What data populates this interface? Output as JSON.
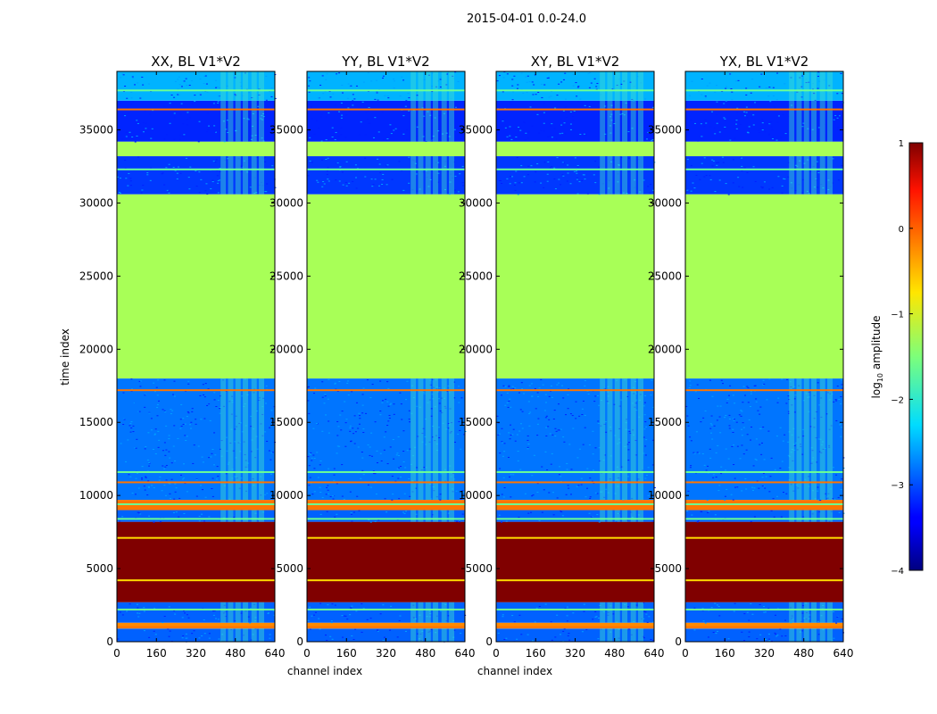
{
  "suptitle": "2015-04-01 0.0-24.0",
  "chart_data": [
    {
      "type": "heatmap",
      "title": "XX, BL V1*V2",
      "xlabel": "channel index",
      "ylabel": "time index",
      "xlim": [
        0,
        640
      ],
      "ylim": [
        0,
        39000
      ],
      "xticks": [
        0,
        160,
        320,
        480,
        640
      ],
      "yticks": [
        0,
        5000,
        10000,
        15000,
        20000,
        25000,
        30000,
        35000
      ],
      "band_ranges": [
        {
          "t0": 0,
          "t1": 900,
          "value": -2.9
        },
        {
          "t0": 900,
          "t1": 1300,
          "value": -0.3
        },
        {
          "t0": 1300,
          "t1": 2700,
          "value": -2.9
        },
        {
          "t0": 2700,
          "t1": 8200,
          "value": 1.0
        },
        {
          "t0": 8200,
          "t1": 9000,
          "value": -2.9
        },
        {
          "t0": 9000,
          "t1": 9700,
          "value": -0.2
        },
        {
          "t0": 9700,
          "t1": 18000,
          "value": -2.8
        },
        {
          "t0": 18000,
          "t1": 30600,
          "value": -1.3
        },
        {
          "t0": 30600,
          "t1": 33200,
          "value": -3.1
        },
        {
          "t0": 33200,
          "t1": 34200,
          "value": -1.3
        },
        {
          "t0": 34200,
          "t1": 37000,
          "value": -3.2
        },
        {
          "t0": 37000,
          "t1": 39000,
          "value": -2.5
        }
      ]
    },
    {
      "type": "heatmap",
      "title": "YY, BL V1*V2",
      "xlabel": "channel index",
      "ylabel": "",
      "xlim": [
        0,
        640
      ],
      "ylim": [
        0,
        39000
      ],
      "xticks": [
        0,
        160,
        320,
        480,
        640
      ],
      "yticks": [
        0,
        5000,
        10000,
        15000,
        20000,
        25000,
        30000,
        35000
      ],
      "band_ranges": [
        {
          "t0": 0,
          "t1": 900,
          "value": -2.9
        },
        {
          "t0": 900,
          "t1": 1300,
          "value": -0.3
        },
        {
          "t0": 1300,
          "t1": 2700,
          "value": -2.9
        },
        {
          "t0": 2700,
          "t1": 8200,
          "value": 1.0
        },
        {
          "t0": 8200,
          "t1": 9000,
          "value": -2.9
        },
        {
          "t0": 9000,
          "t1": 9700,
          "value": -0.2
        },
        {
          "t0": 9700,
          "t1": 18000,
          "value": -2.8
        },
        {
          "t0": 18000,
          "t1": 30600,
          "value": -1.3
        },
        {
          "t0": 30600,
          "t1": 33200,
          "value": -3.1
        },
        {
          "t0": 33200,
          "t1": 34200,
          "value": -1.3
        },
        {
          "t0": 34200,
          "t1": 37000,
          "value": -3.2
        },
        {
          "t0": 37000,
          "t1": 39000,
          "value": -2.5
        }
      ]
    },
    {
      "type": "heatmap",
      "title": "XY, BL V1*V2",
      "xlabel": "",
      "ylabel": "",
      "xlim": [
        0,
        640
      ],
      "ylim": [
        0,
        39000
      ],
      "xticks": [
        0,
        160,
        320,
        480,
        640
      ],
      "yticks": [
        0,
        5000,
        10000,
        15000,
        20000,
        25000,
        30000,
        35000
      ],
      "band_ranges": [
        {
          "t0": 0,
          "t1": 900,
          "value": -2.9
        },
        {
          "t0": 900,
          "t1": 1300,
          "value": -0.3
        },
        {
          "t0": 1300,
          "t1": 2700,
          "value": -2.9
        },
        {
          "t0": 2700,
          "t1": 8200,
          "value": 1.0
        },
        {
          "t0": 8200,
          "t1": 9000,
          "value": -2.9
        },
        {
          "t0": 9000,
          "t1": 9700,
          "value": -0.2
        },
        {
          "t0": 9700,
          "t1": 18000,
          "value": -2.8
        },
        {
          "t0": 18000,
          "t1": 30600,
          "value": -1.3
        },
        {
          "t0": 30600,
          "t1": 33200,
          "value": -3.1
        },
        {
          "t0": 33200,
          "t1": 34200,
          "value": -1.3
        },
        {
          "t0": 34200,
          "t1": 37000,
          "value": -3.2
        },
        {
          "t0": 37000,
          "t1": 39000,
          "value": -2.5
        }
      ]
    },
    {
      "type": "heatmap",
      "title": "YX, BL V1*V2",
      "xlabel": "",
      "ylabel": "",
      "xlim": [
        0,
        640
      ],
      "ylim": [
        0,
        39000
      ],
      "xticks": [
        0,
        160,
        320,
        480,
        640
      ],
      "yticks": [
        0,
        5000,
        10000,
        15000,
        20000,
        25000,
        30000,
        35000
      ],
      "band_ranges": [
        {
          "t0": 0,
          "t1": 900,
          "value": -2.9
        },
        {
          "t0": 900,
          "t1": 1300,
          "value": -0.3
        },
        {
          "t0": 1300,
          "t1": 2700,
          "value": -2.9
        },
        {
          "t0": 2700,
          "t1": 8200,
          "value": 1.0
        },
        {
          "t0": 8200,
          "t1": 9000,
          "value": -2.9
        },
        {
          "t0": 9000,
          "t1": 9700,
          "value": -0.2
        },
        {
          "t0": 9700,
          "t1": 18000,
          "value": -2.8
        },
        {
          "t0": 18000,
          "t1": 30600,
          "value": -1.3
        },
        {
          "t0": 30600,
          "t1": 33200,
          "value": -3.1
        },
        {
          "t0": 33200,
          "t1": 34200,
          "value": -1.3
        },
        {
          "t0": 34200,
          "t1": 37000,
          "value": -3.2
        },
        {
          "t0": 37000,
          "t1": 39000,
          "value": -2.5
        }
      ]
    }
  ],
  "colorbar": {
    "label": "log",
    "label_sub": "10",
    "label_rest": " amplitude",
    "vmin": -4,
    "vmax": 1,
    "ticks": [
      1,
      0,
      -1,
      -2,
      -3,
      -4
    ],
    "tick_labels": [
      "1",
      "0",
      "−1",
      "−2",
      "−3",
      "−4"
    ],
    "colormap": "jet"
  }
}
